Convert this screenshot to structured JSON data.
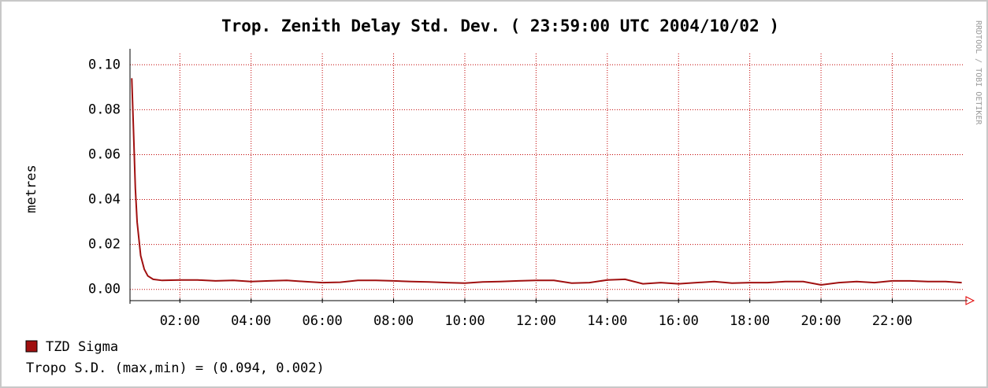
{
  "chart_data": {
    "type": "line",
    "title": "Trop. Zenith Delay Std. Dev. ( 23:59:00 UTC 2004/10/02 )",
    "y_label": "metres",
    "side_label": "RRDTOOL / TOBI OETIKER",
    "legend_note": "Tropo S.D. (max,min) = (0.094, 0.002)",
    "xlim": [
      0.6,
      23.98
    ],
    "xticks": [
      {
        "value": 2,
        "label": "02:00"
      },
      {
        "value": 4,
        "label": "04:00"
      },
      {
        "value": 6,
        "label": "06:00"
      },
      {
        "value": 8,
        "label": "08:00"
      },
      {
        "value": 10,
        "label": "10:00"
      },
      {
        "value": 12,
        "label": "12:00"
      },
      {
        "value": 14,
        "label": "14:00"
      },
      {
        "value": 16,
        "label": "16:00"
      },
      {
        "value": 18,
        "label": "18:00"
      },
      {
        "value": 20,
        "label": "20:00"
      },
      {
        "value": 22,
        "label": "22:00"
      }
    ],
    "ylim": [
      -0.005,
      0.105
    ],
    "yticks": [
      {
        "value": 0,
        "label": "0.00"
      },
      {
        "value": 0.02,
        "label": "0.02"
      },
      {
        "value": 0.04,
        "label": "0.04"
      },
      {
        "value": 0.06,
        "label": "0.06"
      },
      {
        "value": 0.08,
        "label": "0.08"
      },
      {
        "value": 0.1,
        "label": "0.10"
      }
    ],
    "grid": true,
    "x": [
      0.65,
      0.7,
      0.75,
      0.8,
      0.9,
      1.0,
      1.1,
      1.25,
      1.5,
      2,
      2.5,
      3,
      3.5,
      4,
      4.5,
      5,
      5.5,
      6,
      6.5,
      7,
      7.5,
      8,
      8.5,
      9,
      9.5,
      10,
      10.5,
      11,
      11.5,
      12,
      12.5,
      13,
      13.5,
      14,
      14.5,
      15,
      15.5,
      16,
      16.5,
      17,
      17.5,
      18,
      18.5,
      19,
      19.5,
      20,
      20.5,
      21,
      21.5,
      22,
      22.5,
      23,
      23.5,
      23.95
    ],
    "series": [
      {
        "name": "TZD Sigma",
        "color": "#a01010",
        "values": [
          0.094,
          0.07,
          0.045,
          0.03,
          0.015,
          0.009,
          0.006,
          0.0045,
          0.004,
          0.0042,
          0.0042,
          0.0038,
          0.004,
          0.0035,
          0.0038,
          0.004,
          0.0035,
          0.003,
          0.0032,
          0.004,
          0.004,
          0.0038,
          0.0035,
          0.0033,
          0.003,
          0.0028,
          0.0033,
          0.0035,
          0.0038,
          0.004,
          0.004,
          0.0028,
          0.003,
          0.0042,
          0.0045,
          0.0025,
          0.003,
          0.0025,
          0.003,
          0.0035,
          0.0028,
          0.003,
          0.003,
          0.0035,
          0.0035,
          0.002,
          0.003,
          0.0035,
          0.003,
          0.0038,
          0.0038,
          0.0035,
          0.0035,
          0.003
        ]
      }
    ]
  }
}
